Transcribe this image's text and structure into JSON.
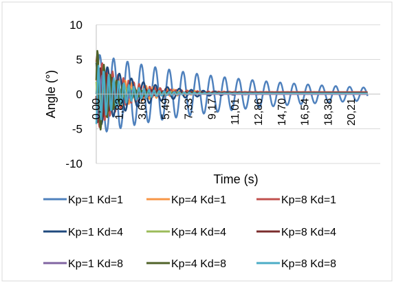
{
  "chart_data": {
    "type": "line",
    "title": "",
    "xlabel": "Time (s)",
    "ylabel": "Angle (°)",
    "ylim": [
      -10,
      10
    ],
    "yticks": [
      10,
      5,
      0,
      -5,
      -10
    ],
    "xlim": [
      0,
      22.5
    ],
    "xtick_labels": [
      "0,00",
      "1,83",
      "3,66",
      "5,49",
      "7,33",
      "9,17",
      "11,01",
      "12,86",
      "14,70",
      "16,54",
      "18,38",
      "20,21"
    ],
    "xtick_values": [
      0.0,
      1.83,
      3.66,
      5.49,
      7.33,
      9.17,
      11.01,
      12.86,
      14.7,
      16.54,
      18.38,
      20.21
    ],
    "grid": "horizontal",
    "legend_position": "bottom",
    "series": [
      {
        "name": "Kp=1 Kd=1",
        "color": "#4F81BD",
        "amplitude": 5.8,
        "period": 1.1,
        "decay": 0.085,
        "phase": 0.0,
        "offset": 0.0
      },
      {
        "name": "Kp=4 Kd=1",
        "color": "#F79646",
        "amplitude": 4.0,
        "period": 0.55,
        "decay": 0.35,
        "phase": 0.5,
        "offset": 0.2
      },
      {
        "name": "Kp=8 Kd=1",
        "color": "#C0504D",
        "amplitude": 5.5,
        "period": 0.42,
        "decay": 0.45,
        "phase": 1.0,
        "offset": 0.3
      },
      {
        "name": "Kp=1 Kd=4",
        "color": "#1F497D",
        "amplitude": 5.0,
        "period": 0.95,
        "decay": 0.3,
        "phase": 2.0,
        "offset": 0.1
      },
      {
        "name": "Kp=4 Kd=4",
        "color": "#9BBB59",
        "amplitude": 3.5,
        "period": 0.6,
        "decay": 0.6,
        "phase": 2.6,
        "offset": 0.2
      },
      {
        "name": "Kp=8 Kd=4",
        "color": "#7B2C2C",
        "amplitude": 4.5,
        "period": 0.45,
        "decay": 0.55,
        "phase": 3.2,
        "offset": 0.2
      },
      {
        "name": "Kp=1 Kd=8",
        "color": "#8064A2",
        "amplitude": 3.8,
        "period": 0.8,
        "decay": 0.7,
        "phase": 4.0,
        "offset": 0.0
      },
      {
        "name": "Kp=4 Kd=8",
        "color": "#4F6228",
        "amplitude": 6.8,
        "period": 0.5,
        "decay": 0.8,
        "phase": 0.3,
        "offset": 0.1
      },
      {
        "name": "Kp=8 Kd=8",
        "color": "#4BACC6",
        "amplitude": 4.5,
        "period": 0.4,
        "decay": 0.5,
        "phase": 5.0,
        "offset": 0.1
      }
    ]
  }
}
